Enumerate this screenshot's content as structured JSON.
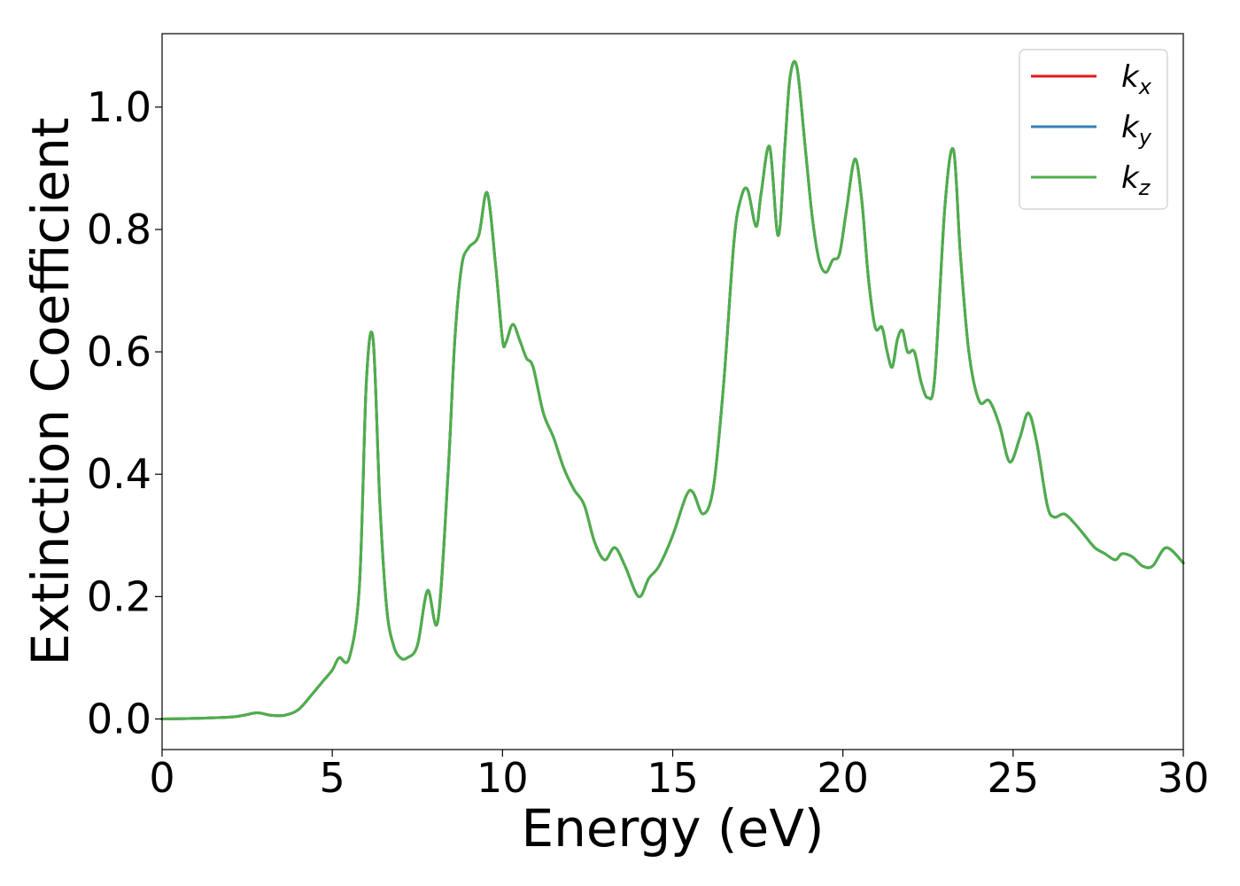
{
  "chart_data": {
    "type": "line",
    "xlabel": "Energy (eV)",
    "ylabel": "Extinction Coefficient",
    "xlim": [
      0,
      30
    ],
    "ylim": [
      -0.05,
      1.12
    ],
    "xticks": [
      "0",
      "5",
      "10",
      "15",
      "20",
      "25",
      "30"
    ],
    "yticks": [
      "0.0",
      "0.2",
      "0.4",
      "0.6",
      "0.8",
      "1.0"
    ],
    "grid": false,
    "legend_position": "top-right",
    "x": [
      0,
      1,
      2,
      2.4,
      2.8,
      3.2,
      3.6,
      4.0,
      4.4,
      4.7,
      5.0,
      5.2,
      5.5,
      5.8,
      6.0,
      6.2,
      6.4,
      6.6,
      6.8,
      7.0,
      7.2,
      7.5,
      7.8,
      8.1,
      8.4,
      8.6,
      8.8,
      9.0,
      9.3,
      9.55,
      9.8,
      10.0,
      10.1,
      10.3,
      10.5,
      10.7,
      10.9,
      11.2,
      11.5,
      11.8,
      12.1,
      12.4,
      12.7,
      13.0,
      13.3,
      13.6,
      14.0,
      14.3,
      14.6,
      15.0,
      15.4,
      15.6,
      15.9,
      16.2,
      16.5,
      16.8,
      17.0,
      17.2,
      17.45,
      17.6,
      17.85,
      18.1,
      18.3,
      18.45,
      18.65,
      18.9,
      19.1,
      19.3,
      19.5,
      19.7,
      19.9,
      20.1,
      20.35,
      20.55,
      20.75,
      20.95,
      21.15,
      21.3,
      21.45,
      21.6,
      21.75,
      21.9,
      22.1,
      22.3,
      22.5,
      22.7,
      23.0,
      23.25,
      23.45,
      23.7,
      24.0,
      24.3,
      24.6,
      24.9,
      25.2,
      25.45,
      25.7,
      26.0,
      26.2,
      26.5,
      26.8,
      27.1,
      27.4,
      27.7,
      28.0,
      28.2,
      28.5,
      28.8,
      29.1,
      29.5,
      30.0
    ],
    "series": [
      {
        "name": "k_x",
        "color": "#e41a1c",
        "values": [
          0.0,
          0.001,
          0.003,
          0.006,
          0.01,
          0.006,
          0.006,
          0.015,
          0.04,
          0.06,
          0.08,
          0.1,
          0.1,
          0.22,
          0.55,
          0.62,
          0.35,
          0.18,
          0.12,
          0.1,
          0.1,
          0.12,
          0.21,
          0.16,
          0.4,
          0.62,
          0.74,
          0.77,
          0.79,
          0.86,
          0.74,
          0.62,
          0.615,
          0.645,
          0.62,
          0.59,
          0.575,
          0.5,
          0.46,
          0.41,
          0.375,
          0.35,
          0.29,
          0.26,
          0.28,
          0.25,
          0.2,
          0.23,
          0.25,
          0.3,
          0.365,
          0.37,
          0.335,
          0.38,
          0.55,
          0.78,
          0.85,
          0.865,
          0.805,
          0.86,
          0.935,
          0.79,
          0.94,
          1.05,
          1.065,
          0.93,
          0.82,
          0.75,
          0.73,
          0.75,
          0.76,
          0.83,
          0.915,
          0.85,
          0.72,
          0.64,
          0.64,
          0.6,
          0.575,
          0.62,
          0.635,
          0.6,
          0.6,
          0.55,
          0.525,
          0.56,
          0.84,
          0.93,
          0.76,
          0.6,
          0.52,
          0.52,
          0.48,
          0.42,
          0.46,
          0.5,
          0.45,
          0.35,
          0.33,
          0.335,
          0.32,
          0.3,
          0.28,
          0.27,
          0.26,
          0.27,
          0.265,
          0.25,
          0.25,
          0.28,
          0.255
        ]
      },
      {
        "name": "k_y",
        "color": "#377eb8",
        "values": [
          0.0,
          0.001,
          0.003,
          0.006,
          0.01,
          0.006,
          0.006,
          0.015,
          0.04,
          0.06,
          0.08,
          0.1,
          0.1,
          0.22,
          0.55,
          0.62,
          0.35,
          0.18,
          0.12,
          0.1,
          0.1,
          0.12,
          0.21,
          0.16,
          0.4,
          0.62,
          0.74,
          0.77,
          0.79,
          0.86,
          0.74,
          0.62,
          0.615,
          0.645,
          0.62,
          0.59,
          0.575,
          0.5,
          0.46,
          0.41,
          0.375,
          0.35,
          0.29,
          0.26,
          0.28,
          0.25,
          0.2,
          0.23,
          0.25,
          0.3,
          0.365,
          0.37,
          0.335,
          0.38,
          0.55,
          0.78,
          0.85,
          0.865,
          0.805,
          0.86,
          0.935,
          0.79,
          0.94,
          1.05,
          1.065,
          0.93,
          0.82,
          0.75,
          0.73,
          0.75,
          0.76,
          0.83,
          0.915,
          0.85,
          0.72,
          0.64,
          0.64,
          0.6,
          0.575,
          0.62,
          0.635,
          0.6,
          0.6,
          0.55,
          0.525,
          0.56,
          0.84,
          0.93,
          0.76,
          0.6,
          0.52,
          0.52,
          0.48,
          0.42,
          0.46,
          0.5,
          0.45,
          0.35,
          0.33,
          0.335,
          0.32,
          0.3,
          0.28,
          0.27,
          0.26,
          0.27,
          0.265,
          0.25,
          0.25,
          0.28,
          0.255
        ]
      },
      {
        "name": "k_z",
        "color": "#4daf4a",
        "values": [
          0.0,
          0.001,
          0.003,
          0.006,
          0.01,
          0.006,
          0.006,
          0.015,
          0.04,
          0.06,
          0.08,
          0.1,
          0.1,
          0.22,
          0.55,
          0.62,
          0.35,
          0.18,
          0.12,
          0.1,
          0.1,
          0.12,
          0.21,
          0.16,
          0.4,
          0.62,
          0.74,
          0.77,
          0.79,
          0.86,
          0.74,
          0.62,
          0.615,
          0.645,
          0.62,
          0.59,
          0.575,
          0.5,
          0.46,
          0.41,
          0.375,
          0.35,
          0.29,
          0.26,
          0.28,
          0.25,
          0.2,
          0.23,
          0.25,
          0.3,
          0.365,
          0.37,
          0.335,
          0.38,
          0.55,
          0.78,
          0.85,
          0.865,
          0.805,
          0.86,
          0.935,
          0.79,
          0.94,
          1.05,
          1.065,
          0.93,
          0.82,
          0.75,
          0.73,
          0.75,
          0.76,
          0.83,
          0.915,
          0.85,
          0.72,
          0.64,
          0.64,
          0.6,
          0.575,
          0.62,
          0.635,
          0.6,
          0.6,
          0.55,
          0.525,
          0.56,
          0.84,
          0.93,
          0.76,
          0.6,
          0.52,
          0.52,
          0.48,
          0.42,
          0.46,
          0.5,
          0.45,
          0.35,
          0.33,
          0.335,
          0.32,
          0.3,
          0.28,
          0.27,
          0.26,
          0.27,
          0.265,
          0.25,
          0.25,
          0.28,
          0.255
        ]
      }
    ]
  }
}
